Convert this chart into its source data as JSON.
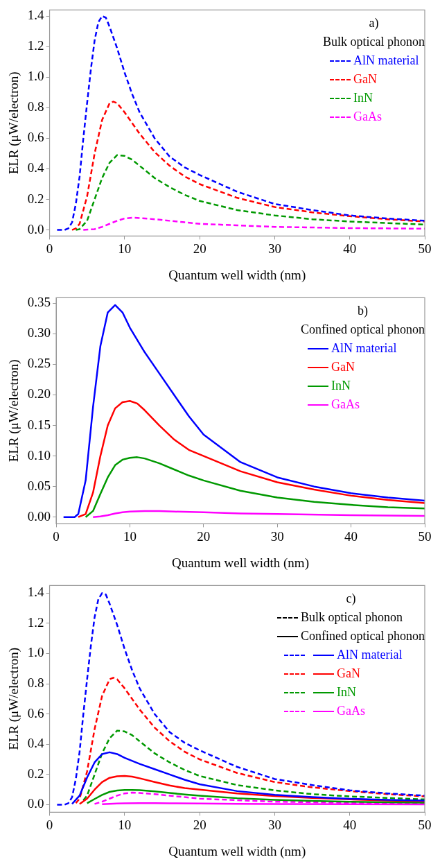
{
  "chart_data": [
    {
      "type": "line",
      "xlabel": "Quantum well width (nm)",
      "ylabel": "ELR (μW/electron)",
      "legend": "top right",
      "legend_title": "Bulk optical phonon",
      "annotations": [
        "a)"
      ],
      "grid": false,
      "xlim": [
        0,
        50
      ],
      "xticks": [
        0,
        10,
        20,
        30,
        40,
        50
      ],
      "ylim": [
        -0.04,
        1.44
      ],
      "yticks": [
        {
          "value": 0,
          "label": "0.0"
        },
        {
          "value": 0.2,
          "label": "0.2"
        },
        {
          "value": 0.4,
          "label": "0.4"
        },
        {
          "value": 0.6,
          "label": "0.6"
        },
        {
          "value": 0.8,
          "label": "0.8"
        },
        {
          "value": 1,
          "label": "1.0"
        },
        {
          "value": 1.2,
          "label": "1.2"
        },
        {
          "value": 1.4,
          "label": "1.4"
        }
      ],
      "series": [
        {
          "name": "AlN material",
          "color": "#0000ff",
          "line_style": "dashed",
          "x": [
            1,
            2,
            2.5,
            3,
            3.5,
            4,
            4.5,
            5,
            5.5,
            6,
            6.5,
            7,
            7.5,
            8,
            9,
            10,
            11,
            12,
            14,
            16,
            18,
            20,
            25,
            30,
            35,
            40,
            45,
            50
          ],
          "values": [
            0,
            0,
            0.01,
            0.05,
            0.17,
            0.35,
            0.6,
            0.83,
            1.05,
            1.24,
            1.36,
            1.4,
            1.39,
            1.33,
            1.19,
            1.03,
            0.89,
            0.77,
            0.6,
            0.48,
            0.41,
            0.36,
            0.25,
            0.17,
            0.13,
            0.095,
            0.075,
            0.06
          ]
        },
        {
          "name": "GaN",
          "color": "#ff0000",
          "line_style": "dashed",
          "x": [
            3,
            3.5,
            4,
            5,
            6,
            7,
            8,
            8.5,
            9,
            10,
            12,
            14,
            16,
            18,
            20,
            25,
            30,
            35,
            40,
            45,
            50
          ],
          "values": [
            0,
            0.01,
            0.04,
            0.22,
            0.5,
            0.72,
            0.83,
            0.84,
            0.83,
            0.77,
            0.63,
            0.51,
            0.42,
            0.35,
            0.3,
            0.21,
            0.15,
            0.115,
            0.09,
            0.07,
            0.055
          ]
        },
        {
          "name": "InN",
          "color": "#009900",
          "line_style": "dashed",
          "x": [
            3.5,
            4,
            5,
            6,
            7,
            8,
            9,
            10,
            11,
            12,
            14,
            16,
            18,
            20,
            25,
            30,
            35,
            40,
            45,
            50
          ],
          "values": [
            0,
            0.005,
            0.06,
            0.2,
            0.34,
            0.44,
            0.49,
            0.485,
            0.46,
            0.42,
            0.34,
            0.28,
            0.23,
            0.19,
            0.13,
            0.095,
            0.07,
            0.055,
            0.045,
            0.035
          ]
        },
        {
          "name": "GaAs",
          "color": "#ff00ff",
          "line_style": "dashed",
          "x": [
            4.5,
            6,
            7,
            8,
            9,
            10,
            11,
            12,
            14,
            16,
            18,
            20,
            25,
            30,
            40,
            50
          ],
          "values": [
            0,
            0.005,
            0.02,
            0.04,
            0.06,
            0.075,
            0.08,
            0.078,
            0.07,
            0.06,
            0.05,
            0.04,
            0.03,
            0.02,
            0.012,
            0.008
          ]
        }
      ]
    },
    {
      "type": "line",
      "xlabel": "Quantum well width (nm)",
      "ylabel": "ELR (μW/electron)",
      "legend": "top right",
      "legend_title": "Confined optical phonon",
      "annotations": [
        "b)"
      ],
      "grid": false,
      "xlim": [
        0,
        50
      ],
      "xticks": [
        0,
        10,
        20,
        30,
        40,
        50
      ],
      "ylim": [
        -0.011,
        0.359
      ],
      "yticks": [
        {
          "value": 0,
          "label": "0.00"
        },
        {
          "value": 0.05,
          "label": "0.05"
        },
        {
          "value": 0.1,
          "label": "0.10"
        },
        {
          "value": 0.15,
          "label": "0.15"
        },
        {
          "value": 0.2,
          "label": "0.20"
        },
        {
          "value": 0.25,
          "label": "0.25"
        },
        {
          "value": 0.3,
          "label": "0.30"
        },
        {
          "value": 0.35,
          "label": "0.35"
        }
      ],
      "series": [
        {
          "name": "AlN material",
          "color": "#0000ff",
          "line_style": "solid",
          "x": [
            1,
            2,
            2.5,
            3,
            4,
            5,
            6,
            7,
            8,
            9,
            10,
            12,
            14,
            16,
            18,
            20,
            25,
            30,
            35,
            40,
            45,
            50
          ],
          "values": [
            0,
            0,
            0,
            0.005,
            0.06,
            0.18,
            0.28,
            0.335,
            0.347,
            0.335,
            0.31,
            0.27,
            0.235,
            0.2,
            0.165,
            0.135,
            0.09,
            0.065,
            0.05,
            0.039,
            0.032,
            0.027
          ]
        },
        {
          "name": "GaN",
          "color": "#ff0000",
          "line_style": "solid",
          "x": [
            3,
            4,
            5,
            6,
            7,
            8,
            9,
            10,
            11,
            12,
            14,
            16,
            18,
            20,
            25,
            30,
            35,
            40,
            45,
            50
          ],
          "values": [
            0,
            0.005,
            0.04,
            0.1,
            0.15,
            0.178,
            0.188,
            0.19,
            0.186,
            0.175,
            0.15,
            0.127,
            0.11,
            0.1,
            0.075,
            0.057,
            0.045,
            0.035,
            0.028,
            0.023
          ]
        },
        {
          "name": "InN",
          "color": "#009900",
          "line_style": "solid",
          "x": [
            4,
            5,
            6,
            7,
            8,
            9,
            10,
            11,
            12,
            14,
            16,
            18,
            20,
            25,
            30,
            35,
            40,
            45,
            50
          ],
          "values": [
            0,
            0.01,
            0.038,
            0.065,
            0.085,
            0.094,
            0.097,
            0.098,
            0.096,
            0.088,
            0.078,
            0.068,
            0.06,
            0.043,
            0.032,
            0.025,
            0.02,
            0.016,
            0.014
          ]
        },
        {
          "name": "GaAs",
          "color": "#ff00ff",
          "line_style": "solid",
          "x": [
            5,
            6,
            7,
            8,
            9,
            10,
            12,
            14,
            16,
            20,
            25,
            30,
            40,
            50
          ],
          "values": [
            0,
            0.001,
            0.003,
            0.006,
            0.008,
            0.009,
            0.01,
            0.01,
            0.009,
            0.008,
            0.006,
            0.005,
            0.003,
            0.002
          ]
        }
      ]
    },
    {
      "type": "line",
      "xlabel": "Quantum well width (nm)",
      "ylabel": "ELR (μW/electron)",
      "legend": "top right",
      "annotations": [
        "c)",
        "Bulk optical phonon",
        "Confined optical phonon"
      ],
      "grid": false,
      "xlim": [
        0,
        50
      ],
      "xticks": [
        0,
        10,
        20,
        30,
        40,
        50
      ],
      "ylim": [
        -0.05,
        1.45
      ],
      "yticks": [
        {
          "value": 0,
          "label": "0.0"
        },
        {
          "value": 0.2,
          "label": "0.2"
        },
        {
          "value": 0.4,
          "label": "0.4"
        },
        {
          "value": 0.6,
          "label": "0.6"
        },
        {
          "value": 0.8,
          "label": "0.8"
        },
        {
          "value": 1,
          "label": "1.0"
        },
        {
          "value": 1.2,
          "label": "1.2"
        },
        {
          "value": 1.4,
          "label": "1.4"
        }
      ],
      "series": [
        {
          "name": "AlN material",
          "color": "#0000ff",
          "line_style": "dashed",
          "x": [
            1,
            2,
            2.5,
            3,
            3.5,
            4,
            4.5,
            5,
            5.5,
            6,
            6.5,
            7,
            7.5,
            8,
            9,
            10,
            11,
            12,
            14,
            16,
            18,
            20,
            25,
            30,
            35,
            40,
            45,
            50
          ],
          "values": [
            0,
            0,
            0.01,
            0.05,
            0.17,
            0.35,
            0.6,
            0.83,
            1.05,
            1.24,
            1.36,
            1.4,
            1.39,
            1.33,
            1.19,
            1.03,
            0.89,
            0.77,
            0.6,
            0.48,
            0.41,
            0.36,
            0.25,
            0.17,
            0.13,
            0.095,
            0.075,
            0.06
          ]
        },
        {
          "color": "#0000ff",
          "line_style": "solid",
          "x": [
            3,
            4,
            5,
            6,
            7,
            8,
            9,
            10,
            12,
            14,
            16,
            18,
            20,
            25,
            30,
            35,
            40,
            45,
            50
          ],
          "values": [
            0.005,
            0.06,
            0.18,
            0.28,
            0.335,
            0.347,
            0.335,
            0.31,
            0.27,
            0.235,
            0.2,
            0.165,
            0.135,
            0.09,
            0.065,
            0.05,
            0.039,
            0.032,
            0.027
          ]
        },
        {
          "name": "GaN",
          "color": "#ff0000",
          "line_style": "dashed",
          "x": [
            3.5,
            4,
            5,
            6,
            7,
            8,
            8.5,
            9,
            10,
            12,
            14,
            16,
            18,
            20,
            25,
            30,
            35,
            40,
            45,
            50
          ],
          "values": [
            0.01,
            0.04,
            0.22,
            0.5,
            0.72,
            0.83,
            0.84,
            0.83,
            0.77,
            0.63,
            0.51,
            0.42,
            0.35,
            0.3,
            0.21,
            0.15,
            0.115,
            0.09,
            0.07,
            0.055
          ]
        },
        {
          "color": "#ff0000",
          "line_style": "solid",
          "x": [
            4,
            5,
            6,
            7,
            8,
            9,
            10,
            11,
            12,
            14,
            16,
            18,
            20,
            25,
            30,
            35,
            40,
            45,
            50
          ],
          "values": [
            0.005,
            0.04,
            0.1,
            0.15,
            0.178,
            0.188,
            0.19,
            0.186,
            0.175,
            0.15,
            0.127,
            0.11,
            0.1,
            0.075,
            0.057,
            0.045,
            0.035,
            0.028,
            0.023
          ]
        },
        {
          "name": "InN",
          "color": "#009900",
          "line_style": "dashed",
          "x": [
            4.5,
            5,
            6,
            7,
            8,
            9,
            10,
            11,
            12,
            14,
            16,
            18,
            20,
            25,
            30,
            35,
            40,
            45,
            50
          ],
          "values": [
            0.03,
            0.06,
            0.2,
            0.34,
            0.44,
            0.49,
            0.485,
            0.46,
            0.42,
            0.34,
            0.28,
            0.23,
            0.19,
            0.13,
            0.095,
            0.07,
            0.055,
            0.045,
            0.035
          ]
        },
        {
          "color": "#009900",
          "line_style": "solid",
          "x": [
            5,
            6,
            7,
            8,
            9,
            10,
            11,
            12,
            14,
            16,
            18,
            20,
            25,
            30,
            35,
            40,
            45,
            50
          ],
          "values": [
            0.01,
            0.038,
            0.065,
            0.085,
            0.094,
            0.097,
            0.098,
            0.096,
            0.088,
            0.078,
            0.068,
            0.06,
            0.043,
            0.032,
            0.025,
            0.02,
            0.016,
            0.014
          ]
        },
        {
          "name": "GaAs",
          "color": "#ff00ff",
          "line_style": "dashed",
          "x": [
            6,
            7,
            8,
            9,
            10,
            11,
            12,
            14,
            16,
            18,
            20,
            25,
            30,
            40,
            50
          ],
          "values": [
            0.005,
            0.02,
            0.04,
            0.06,
            0.075,
            0.08,
            0.078,
            0.07,
            0.06,
            0.05,
            0.04,
            0.03,
            0.02,
            0.012,
            0.008
          ]
        },
        {
          "color": "#ff00ff",
          "line_style": "solid",
          "x": [
            7,
            8,
            9,
            10,
            12,
            14,
            16,
            20,
            25,
            30,
            40,
            50
          ],
          "values": [
            0.003,
            0.006,
            0.008,
            0.009,
            0.01,
            0.01,
            0.009,
            0.008,
            0.006,
            0.005,
            0.003,
            0.002
          ]
        }
      ]
    }
  ]
}
